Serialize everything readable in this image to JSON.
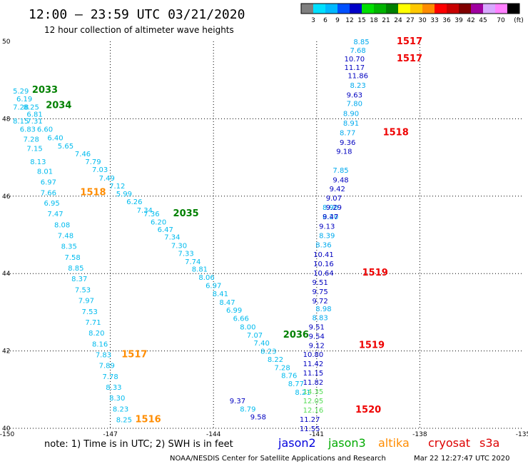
{
  "chart_data": {
    "type": "scatter",
    "title": "12:00 – 23:59 UTC 03/21/2020",
    "subtitle": "12 hour collection of altimeter wave heights",
    "xlim": [
      -150,
      -135
    ],
    "ylim": [
      40,
      50
    ],
    "x_ticks": [
      "-150",
      "-147",
      "-144",
      "-141",
      "-138",
      "-135"
    ],
    "y_ticks": [
      "40",
      "42",
      "44",
      "46",
      "48",
      "50"
    ],
    "grid": true,
    "colorbar": {
      "labels": [
        "3",
        "6",
        "9",
        "12",
        "15",
        "18",
        "21",
        "24",
        "27",
        "30",
        "33",
        "36",
        "39",
        "42",
        "45",
        "70"
      ],
      "unit": "(ft)",
      "colors": [
        "#7f7f7f",
        "#00e0ff",
        "#00b8ff",
        "#0050ff",
        "#0000c8",
        "#00e000",
        "#00b400",
        "#008000",
        "#ffff00",
        "#ffc800",
        "#ff8c00",
        "#ff0000",
        "#c80000",
        "#800000",
        "#a000a0",
        "#d8a8ff",
        "#ff80ff",
        "#000000"
      ]
    },
    "series": [
      {
        "color": "#00bbee",
        "points": [
          {
            "x": -149.6,
            "y": 48.73,
            "label": "5.29"
          },
          {
            "x": -149.5,
            "y": 48.52,
            "label": "6.19"
          },
          {
            "x": -149.6,
            "y": 48.31,
            "label": "7.28"
          },
          {
            "x": -149.3,
            "y": 48.31,
            "label": "8.25"
          },
          {
            "x": -149.2,
            "y": 48.13,
            "label": "6.81"
          },
          {
            "x": -149.6,
            "y": 47.95,
            "label": "8.15"
          },
          {
            "x": -149.2,
            "y": 47.95,
            "label": "7.31"
          },
          {
            "x": -149.4,
            "y": 47.74,
            "label": "6.83"
          },
          {
            "x": -148.9,
            "y": 47.74,
            "label": "6.60"
          },
          {
            "x": -149.3,
            "y": 47.48,
            "label": "7.28"
          },
          {
            "x": -148.6,
            "y": 47.52,
            "label": "6.40"
          },
          {
            "x": -149.2,
            "y": 47.24,
            "label": "7.15"
          },
          {
            "x": -148.3,
            "y": 47.31,
            "label": "5.65"
          },
          {
            "x": -147.8,
            "y": 47.1,
            "label": "7.46"
          },
          {
            "x": -149.1,
            "y": 46.9,
            "label": "8.13"
          },
          {
            "x": -147.5,
            "y": 46.9,
            "label": "7.79"
          },
          {
            "x": -148.9,
            "y": 46.65,
            "label": "8.01"
          },
          {
            "x": -147.3,
            "y": 46.7,
            "label": "7.03"
          },
          {
            "x": -148.8,
            "y": 46.37,
            "label": "6.97"
          },
          {
            "x": -147.1,
            "y": 46.48,
            "label": "7.49"
          },
          {
            "x": -146.8,
            "y": 46.27,
            "label": "7.12"
          },
          {
            "x": -148.8,
            "y": 46.1,
            "label": "7.66"
          },
          {
            "x": -146.6,
            "y": 46.07,
            "label": "5.99"
          },
          {
            "x": -148.7,
            "y": 45.83,
            "label": "6.95"
          },
          {
            "x": -146.3,
            "y": 45.87,
            "label": "6.26"
          },
          {
            "x": -146.0,
            "y": 45.65,
            "label": "7.34"
          },
          {
            "x": -148.6,
            "y": 45.55,
            "label": "7.47"
          },
          {
            "x": -145.8,
            "y": 45.55,
            "label": "7.36"
          },
          {
            "x": -145.6,
            "y": 45.34,
            "label": "6.20"
          },
          {
            "x": -148.4,
            "y": 45.27,
            "label": "8.08"
          },
          {
            "x": -145.4,
            "y": 45.15,
            "label": "6.47"
          },
          {
            "x": -148.3,
            "y": 44.99,
            "label": "7.48"
          },
          {
            "x": -145.2,
            "y": 44.95,
            "label": "7.34"
          },
          {
            "x": -148.2,
            "y": 44.71,
            "label": "8.35"
          },
          {
            "x": -145.0,
            "y": 44.73,
            "label": "7.30"
          },
          {
            "x": -144.8,
            "y": 44.53,
            "label": "7.33"
          },
          {
            "x": -148.1,
            "y": 44.43,
            "label": "7.58"
          },
          {
            "x": -144.6,
            "y": 44.32,
            "label": "7.74"
          },
          {
            "x": -148.0,
            "y": 44.15,
            "label": "8.85"
          },
          {
            "x": -144.4,
            "y": 44.12,
            "label": "8.81"
          },
          {
            "x": -144.2,
            "y": 43.91,
            "label": "8.06"
          },
          {
            "x": -147.9,
            "y": 43.87,
            "label": "8.37"
          },
          {
            "x": -144.0,
            "y": 43.7,
            "label": "6.97"
          },
          {
            "x": -147.8,
            "y": 43.59,
            "label": "7.53"
          },
          {
            "x": -143.8,
            "y": 43.49,
            "label": "8.41"
          },
          {
            "x": -147.7,
            "y": 43.31,
            "label": "7.97"
          },
          {
            "x": -143.6,
            "y": 43.27,
            "label": "8.47"
          },
          {
            "x": -143.4,
            "y": 43.06,
            "label": "6.99"
          },
          {
            "x": -147.6,
            "y": 43.03,
            "label": "7.53"
          },
          {
            "x": -143.2,
            "y": 42.85,
            "label": "6.66"
          },
          {
            "x": -147.5,
            "y": 42.75,
            "label": "7.71"
          },
          {
            "x": -143.0,
            "y": 42.63,
            "label": "8.00"
          },
          {
            "x": -147.4,
            "y": 42.47,
            "label": "8.20"
          },
          {
            "x": -142.8,
            "y": 42.42,
            "label": "7.07"
          },
          {
            "x": -142.6,
            "y": 42.21,
            "label": "7.40"
          },
          {
            "x": -147.3,
            "y": 42.19,
            "label": "8.16"
          },
          {
            "x": -142.4,
            "y": 42.0,
            "label": "8.23"
          },
          {
            "x": -147.2,
            "y": 41.91,
            "label": "7.83"
          },
          {
            "x": -142.2,
            "y": 41.79,
            "label": "8.22"
          },
          {
            "x": -147.1,
            "y": 41.63,
            "label": "7.89"
          },
          {
            "x": -142.0,
            "y": 41.58,
            "label": "7.28"
          },
          {
            "x": -147.0,
            "y": 41.35,
            "label": "7.78"
          },
          {
            "x": -141.8,
            "y": 41.37,
            "label": "8.76"
          },
          {
            "x": -141.6,
            "y": 41.16,
            "label": "8.77"
          },
          {
            "x": -146.9,
            "y": 41.07,
            "label": "8.33"
          },
          {
            "x": -141.4,
            "y": 40.94,
            "label": "8.21"
          },
          {
            "x": -146.8,
            "y": 40.79,
            "label": "8.30"
          },
          {
            "x": -146.7,
            "y": 40.51,
            "label": "8.23"
          },
          {
            "x": -146.6,
            "y": 40.23,
            "label": "8.25"
          },
          {
            "x": -143.0,
            "y": 40.51,
            "label": "8.79"
          }
        ]
      },
      {
        "color": "#0000c0",
        "points": [
          {
            "x": -143.3,
            "y": 40.72,
            "label": "9.37"
          },
          {
            "x": -142.7,
            "y": 40.3,
            "label": "9.58"
          }
        ]
      },
      {
        "color": "#00aaee",
        "points": [
          {
            "x": -139.7,
            "y": 50.0,
            "label": "8.85"
          },
          {
            "x": -139.8,
            "y": 49.78,
            "label": "7.68"
          },
          {
            "x": -139.8,
            "y": 48.87,
            "label": "8.23"
          },
          {
            "x": -139.9,
            "y": 48.4,
            "label": "7.80"
          },
          {
            "x": -140.0,
            "y": 48.15,
            "label": "8.90"
          },
          {
            "x": -140.0,
            "y": 47.9,
            "label": "8.91"
          },
          {
            "x": -140.1,
            "y": 47.65,
            "label": "8.77"
          },
          {
            "x": -140.3,
            "y": 46.68,
            "label": "7.85"
          },
          {
            "x": -140.6,
            "y": 45.72,
            "label": "8.90"
          },
          {
            "x": -140.6,
            "y": 45.48,
            "label": "8.20"
          },
          {
            "x": -140.7,
            "y": 44.99,
            "label": "8.39"
          },
          {
            "x": -140.8,
            "y": 44.75,
            "label": "8.36"
          },
          {
            "x": -140.8,
            "y": 43.1,
            "label": "8.98"
          },
          {
            "x": -140.9,
            "y": 42.87,
            "label": "8.83"
          }
        ]
      },
      {
        "color": "#0000c0",
        "points": [
          {
            "x": -139.9,
            "y": 49.56,
            "label": "10.70"
          },
          {
            "x": -139.9,
            "y": 49.34,
            "label": "11.17"
          },
          {
            "x": -139.8,
            "y": 49.12,
            "label": "11.86"
          },
          {
            "x": -139.9,
            "y": 48.63,
            "label": "9.63"
          },
          {
            "x": -140.1,
            "y": 47.4,
            "label": "9.36"
          },
          {
            "x": -140.2,
            "y": 47.17,
            "label": "9.18"
          },
          {
            "x": -140.3,
            "y": 46.43,
            "label": "9.48"
          },
          {
            "x": -140.4,
            "y": 46.2,
            "label": "9.42"
          },
          {
            "x": -140.5,
            "y": 45.96,
            "label": "9.07"
          },
          {
            "x": -140.5,
            "y": 45.72,
            "label": "9.29"
          },
          {
            "x": -140.6,
            "y": 45.48,
            "label": "9.47"
          },
          {
            "x": -140.7,
            "y": 45.23,
            "label": "9.13"
          },
          {
            "x": -140.8,
            "y": 44.5,
            "label": "10.41"
          },
          {
            "x": -140.8,
            "y": 44.26,
            "label": "10.16"
          },
          {
            "x": -140.8,
            "y": 44.02,
            "label": "10.64"
          },
          {
            "x": -140.9,
            "y": 43.78,
            "label": "9.51"
          },
          {
            "x": -140.9,
            "y": 43.54,
            "label": "9.75"
          },
          {
            "x": -140.9,
            "y": 43.3,
            "label": "9.72"
          },
          {
            "x": -141.0,
            "y": 42.63,
            "label": "9.51"
          },
          {
            "x": -141.0,
            "y": 42.39,
            "label": "9.54"
          },
          {
            "x": -141.0,
            "y": 42.15,
            "label": "9.12"
          },
          {
            "x": -141.1,
            "y": 41.92,
            "label": "10.80"
          },
          {
            "x": -141.1,
            "y": 41.68,
            "label": "11.42"
          },
          {
            "x": -141.1,
            "y": 41.44,
            "label": "11.15"
          },
          {
            "x": -141.1,
            "y": 41.2,
            "label": "11.82"
          },
          {
            "x": -141.2,
            "y": 40.24,
            "label": "11.27"
          },
          {
            "x": -141.2,
            "y": 40.0,
            "label": "11.55"
          }
        ]
      },
      {
        "color": "#55dd55",
        "points": [
          {
            "x": -141.1,
            "y": 40.96,
            "label": "14.35"
          },
          {
            "x": -141.1,
            "y": 40.72,
            "label": "12.05"
          },
          {
            "x": -141.1,
            "y": 40.48,
            "label": "12.16"
          }
        ]
      }
    ],
    "track_labels": [
      {
        "text": "2033",
        "x": -148.9,
        "y": 48.75,
        "color": "#008000"
      },
      {
        "text": "2034",
        "x": -148.5,
        "y": 48.35,
        "color": "#008000"
      },
      {
        "text": "2035",
        "x": -144.8,
        "y": 45.55,
        "color": "#008000"
      },
      {
        "text": "2036",
        "x": -141.6,
        "y": 42.42,
        "color": "#008000"
      },
      {
        "text": "1518",
        "x": -147.5,
        "y": 46.1,
        "color": "#ff8c00"
      },
      {
        "text": "1517",
        "x": -146.3,
        "y": 41.91,
        "color": "#ff8c00"
      },
      {
        "text": "1516",
        "x": -145.9,
        "y": 40.23,
        "color": "#ff8c00"
      },
      {
        "text": "1517",
        "x": -138.3,
        "y": 50.0,
        "color": "#ee0000"
      },
      {
        "text": "1517",
        "x": -138.3,
        "y": 49.56,
        "color": "#ee0000"
      },
      {
        "text": "1518",
        "x": -138.7,
        "y": 47.65,
        "color": "#ee0000"
      },
      {
        "text": "1519",
        "x": -139.3,
        "y": 44.02,
        "color": "#ee0000"
      },
      {
        "text": "1519",
        "x": -139.4,
        "y": 42.15,
        "color": "#ee0000"
      },
      {
        "text": "1520",
        "x": -139.5,
        "y": 40.48,
        "color": "#ee0000"
      }
    ],
    "note": "note:  1) Time is in UTC;  2) SWH is in feet",
    "legend": [
      {
        "name": "jason2",
        "color": "#0000dd"
      },
      {
        "name": "jason3",
        "color": "#00aa00"
      },
      {
        "name": "altika",
        "color": "#ff8c00"
      },
      {
        "name": "cryosat",
        "color": "#dd0000"
      },
      {
        "name": "s3a",
        "color": "#dd0000"
      }
    ],
    "credit": "NOAA/NESDIS Center for Satellite Applications and Research",
    "timestamp": "Mar 22 12:27:47 UTC 2020"
  }
}
